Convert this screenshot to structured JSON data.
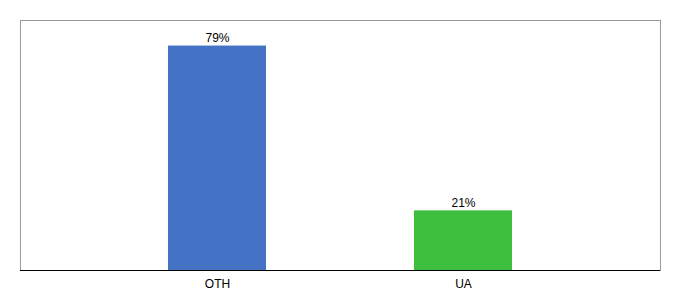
{
  "chart_data": {
    "type": "bar",
    "categories": [
      "OTH",
      "UA"
    ],
    "values": [
      79,
      21
    ],
    "value_labels": [
      "79%",
      "21%"
    ],
    "colors": [
      "#4472c4",
      "#3dbf3d"
    ],
    "ylim": [
      0,
      88
    ],
    "yticks": [],
    "data_labels": true,
    "tick_labels": "x",
    "grid": false
  }
}
